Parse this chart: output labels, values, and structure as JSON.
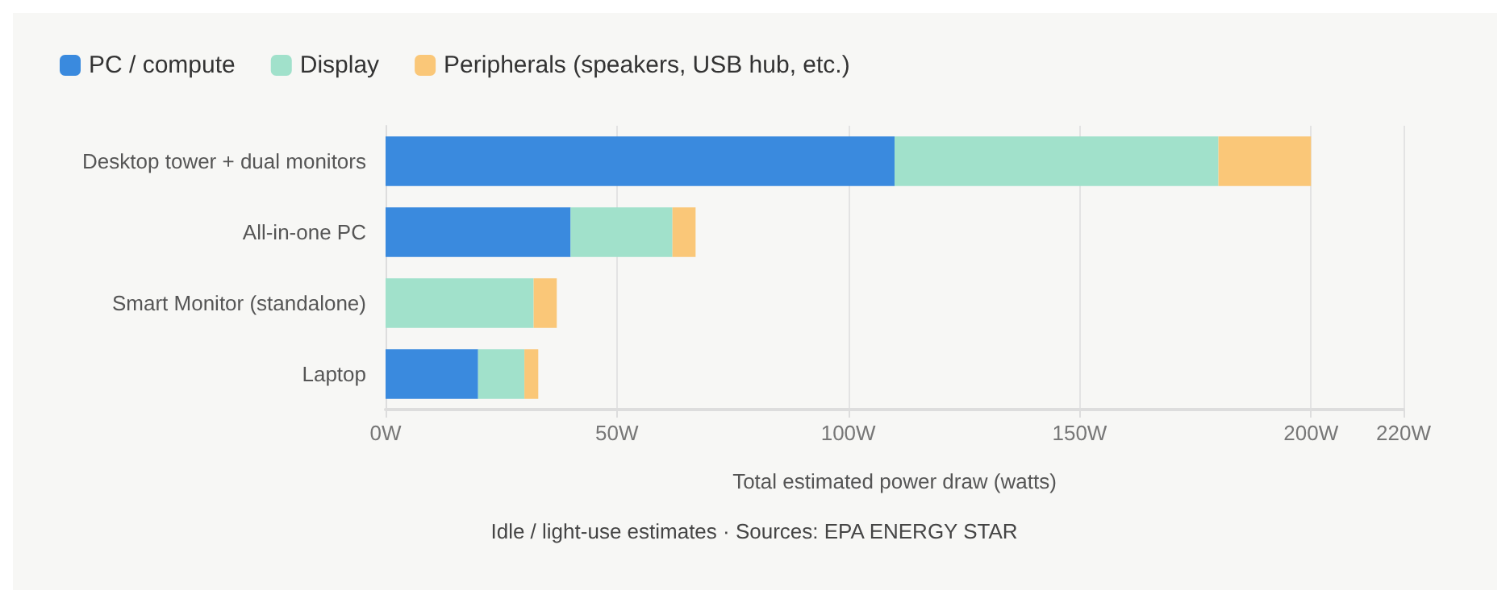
{
  "chart_data": {
    "type": "bar",
    "orientation": "horizontal",
    "stacked": true,
    "categories": [
      "Desktop tower + dual monitors",
      "All-in-one PC",
      "Smart Monitor (standalone)",
      "Laptop"
    ],
    "series": [
      {
        "name": "PC / compute",
        "color": "#3a8ade",
        "values": [
          110,
          40,
          0,
          20
        ]
      },
      {
        "name": "Display",
        "color": "#a1e1cb",
        "values": [
          70,
          22,
          32,
          10
        ]
      },
      {
        "name": "Peripherals (speakers, USB hub, etc.)",
        "color": "#fac778",
        "values": [
          20,
          5,
          5,
          3
        ]
      }
    ],
    "xlim": [
      0,
      220
    ],
    "xticks": [
      {
        "value": 0,
        "label": "0W"
      },
      {
        "value": 50,
        "label": "50W"
      },
      {
        "value": 100,
        "label": "100W"
      },
      {
        "value": 150,
        "label": "150W"
      },
      {
        "value": 200,
        "label": "200W"
      },
      {
        "value": 220,
        "label": "220W"
      }
    ],
    "xlabel": "Total estimated power draw (watts)",
    "annotations": [
      "Idle / light-use estimates · Sources: EPA ENERGY STAR"
    ],
    "grid": "x",
    "legend": "top left"
  }
}
